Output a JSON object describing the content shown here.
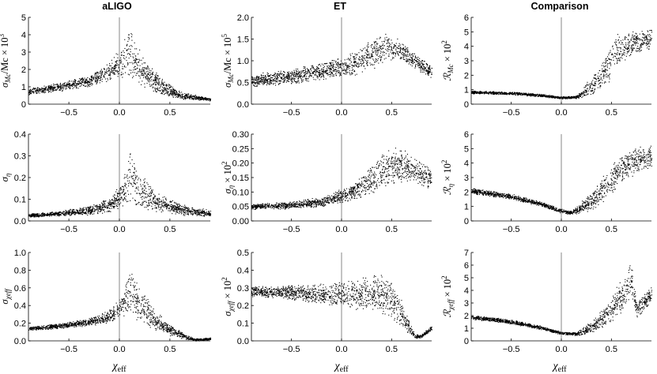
{
  "columns": [
    "aLIGO",
    "ET",
    "Comparison"
  ],
  "xlabel": {
    "main": "χ",
    "sub": "eff"
  },
  "chart_data": [
    {
      "type": "scatter",
      "column": "aLIGO",
      "ylabel": {
        "main": "σ",
        "sub": "Mc",
        "suffix": "/Mc × 10",
        "sup": "3"
      },
      "xlim": [
        -0.9,
        0.9
      ],
      "ylim": [
        0,
        5
      ],
      "yticks": [
        "0",
        "1",
        "2",
        "3",
        "4",
        "5"
      ],
      "xticks": [
        "-0.5",
        "0.0",
        "0.5"
      ],
      "envelope": {
        "x": [
          -0.9,
          -0.6,
          -0.3,
          -0.1,
          0.0,
          0.05,
          0.1,
          0.15,
          0.25,
          0.4,
          0.6,
          0.9
        ],
        "upper": [
          0.95,
          1.25,
          1.7,
          2.5,
          3.2,
          3.9,
          4.6,
          3.7,
          2.7,
          1.6,
          0.75,
          0.35
        ],
        "lower": [
          0.55,
          0.75,
          1.0,
          1.3,
          1.5,
          1.5,
          1.4,
          1.2,
          0.9,
          0.55,
          0.3,
          0.2
        ]
      }
    },
    {
      "type": "scatter",
      "column": "ET",
      "ylabel": {
        "main": "σ",
        "sub": "Mc",
        "suffix": "/Mc × 10",
        "sup": "5"
      },
      "xlim": [
        -0.9,
        0.9
      ],
      "ylim": [
        0,
        2.0
      ],
      "yticks": [
        "0.0",
        "0.5",
        "1.0",
        "1.5",
        "2.0"
      ],
      "xticks": [
        "-0.5",
        "0.0",
        "0.5"
      ],
      "envelope": {
        "x": [
          -0.9,
          -0.5,
          -0.2,
          0.1,
          0.3,
          0.45,
          0.6,
          0.75,
          0.9
        ],
        "upper": [
          0.7,
          0.82,
          0.98,
          1.2,
          1.5,
          1.7,
          1.45,
          1.15,
          0.9
        ],
        "lower": [
          0.38,
          0.45,
          0.55,
          0.65,
          0.8,
          0.95,
          1.0,
          0.8,
          0.55
        ]
      }
    },
    {
      "type": "scatter",
      "column": "Comparison",
      "ylabel": {
        "main": "ℛ",
        "sub": "Mc",
        "suffix": " × 10",
        "sup": "2"
      },
      "xlim": [
        -0.9,
        0.9
      ],
      "ylim": [
        0,
        6
      ],
      "yticks": [
        "0",
        "1",
        "2",
        "3",
        "4",
        "5",
        "6"
      ],
      "xticks": [
        "-0.5",
        "0.0",
        "0.5"
      ],
      "envelope": {
        "x": [
          -0.9,
          -0.5,
          -0.2,
          0.0,
          0.15,
          0.25,
          0.4,
          0.5,
          0.55,
          0.65,
          0.75,
          0.9
        ],
        "upper": [
          0.95,
          0.88,
          0.72,
          0.55,
          0.6,
          1.5,
          3.0,
          4.6,
          5.1,
          5.15,
          5.2,
          5.25
        ],
        "lower": [
          0.72,
          0.66,
          0.52,
          0.38,
          0.4,
          0.45,
          0.9,
          1.6,
          2.2,
          3.0,
          3.5,
          3.8
        ]
      }
    },
    {
      "type": "scatter",
      "column": "aLIGO",
      "ylabel": {
        "main": "σ",
        "sub": "η",
        "suffix": "",
        "sup": ""
      },
      "xlim": [
        -0.9,
        0.9
      ],
      "ylim": [
        0,
        0.4
      ],
      "yticks": [
        "0.0",
        "0.1",
        "0.2",
        "0.3",
        "0.4"
      ],
      "xticks": [
        "-0.5",
        "0.0",
        "0.5"
      ],
      "envelope": {
        "x": [
          -0.9,
          -0.6,
          -0.3,
          -0.1,
          0.0,
          0.05,
          0.1,
          0.15,
          0.25,
          0.4,
          0.6,
          0.9
        ],
        "upper": [
          0.035,
          0.048,
          0.07,
          0.11,
          0.17,
          0.24,
          0.35,
          0.28,
          0.2,
          0.13,
          0.08,
          0.05
        ],
        "lower": [
          0.018,
          0.022,
          0.028,
          0.04,
          0.05,
          0.06,
          0.07,
          0.06,
          0.05,
          0.04,
          0.025,
          0.02
        ]
      }
    },
    {
      "type": "scatter",
      "column": "ET",
      "ylabel": {
        "main": "σ",
        "sub": "η",
        "suffix": " × 10",
        "sup": "2"
      },
      "xlim": [
        -0.9,
        0.9
      ],
      "ylim": [
        0,
        0.3
      ],
      "yticks": [
        "0.00",
        "0.05",
        "0.10",
        "0.15",
        "0.20",
        "0.25",
        "0.30"
      ],
      "xticks": [
        "-0.5",
        "0.0",
        "0.5"
      ],
      "envelope": {
        "x": [
          -0.9,
          -0.5,
          -0.2,
          0.1,
          0.3,
          0.5,
          0.6,
          0.75,
          0.9
        ],
        "upper": [
          0.06,
          0.068,
          0.085,
          0.13,
          0.2,
          0.27,
          0.25,
          0.22,
          0.19
        ],
        "lower": [
          0.04,
          0.042,
          0.05,
          0.07,
          0.09,
          0.12,
          0.13,
          0.12,
          0.1
        ]
      }
    },
    {
      "type": "scatter",
      "column": "Comparison",
      "ylabel": {
        "main": "ℛ",
        "sub": "η",
        "suffix": " × 10",
        "sup": "2"
      },
      "xlim": [
        -0.9,
        0.9
      ],
      "ylim": [
        0,
        6
      ],
      "yticks": [
        "0",
        "1",
        "2",
        "3",
        "4",
        "5",
        "6"
      ],
      "xticks": [
        "-0.5",
        "0.0",
        "0.5"
      ],
      "envelope": {
        "x": [
          -0.9,
          -0.5,
          -0.2,
          0.0,
          0.1,
          0.2,
          0.35,
          0.5,
          0.6,
          0.75,
          0.9
        ],
        "upper": [
          2.3,
          1.9,
          1.35,
          0.85,
          0.7,
          1.4,
          2.6,
          3.9,
          4.6,
          5.2,
          5.5
        ],
        "lower": [
          1.9,
          1.5,
          1.0,
          0.55,
          0.45,
          0.5,
          0.9,
          1.8,
          2.6,
          3.3,
          3.7
        ]
      }
    },
    {
      "type": "scatter",
      "column": "aLIGO",
      "ylabel": {
        "main": "σ",
        "sub": "χeff",
        "suffix": "",
        "sup": ""
      },
      "xlim": [
        -0.9,
        0.9
      ],
      "ylim": [
        0,
        1.0
      ],
      "yticks": [
        "0.0",
        "0.2",
        "0.4",
        "0.6",
        "0.8",
        "1.0"
      ],
      "xticks": [
        "-0.5",
        "0.0",
        "0.5"
      ],
      "envelope": {
        "x": [
          -0.9,
          -0.6,
          -0.3,
          -0.1,
          0.0,
          0.05,
          0.1,
          0.2,
          0.35,
          0.5,
          0.65,
          0.75,
          0.9
        ],
        "upper": [
          0.16,
          0.2,
          0.26,
          0.36,
          0.5,
          0.65,
          0.88,
          0.65,
          0.35,
          0.2,
          0.08,
          0.03,
          0.04
        ],
        "lower": [
          0.12,
          0.14,
          0.17,
          0.2,
          0.25,
          0.28,
          0.3,
          0.2,
          0.12,
          0.06,
          0.02,
          0.0,
          0.01
        ]
      }
    },
    {
      "type": "scatter",
      "column": "ET",
      "ylabel": {
        "main": "σ",
        "sub": "χeff",
        "suffix": " × 10",
        "sup": "2"
      },
      "xlim": [
        -0.9,
        0.9
      ],
      "ylim": [
        0,
        0.5
      ],
      "yticks": [
        "0.0",
        "0.1",
        "0.2",
        "0.3",
        "0.4",
        "0.5"
      ],
      "xticks": [
        "-0.5",
        "0.0",
        "0.5"
      ],
      "envelope": {
        "x": [
          -0.9,
          -0.5,
          -0.2,
          0.1,
          0.3,
          0.45,
          0.55,
          0.65,
          0.73,
          0.8,
          0.9
        ],
        "upper": [
          0.31,
          0.32,
          0.33,
          0.35,
          0.38,
          0.38,
          0.3,
          0.15,
          0.04,
          0.04,
          0.09
        ],
        "lower": [
          0.25,
          0.23,
          0.2,
          0.18,
          0.16,
          0.14,
          0.1,
          0.05,
          0.01,
          0.02,
          0.06
        ]
      }
    },
    {
      "type": "scatter",
      "column": "Comparison",
      "ylabel": {
        "main": "ℛ",
        "sub": "χeff",
        "suffix": " × 10",
        "sup": "2"
      },
      "xlim": [
        -0.9,
        0.9
      ],
      "ylim": [
        0,
        7
      ],
      "yticks": [
        "0",
        "1",
        "2",
        "3",
        "4",
        "5",
        "6",
        "7"
      ],
      "xticks": [
        "-0.5",
        "0.0",
        "0.5"
      ],
      "envelope": {
        "x": [
          -0.9,
          -0.5,
          -0.2,
          0.0,
          0.15,
          0.3,
          0.45,
          0.6,
          0.7,
          0.75,
          0.8,
          0.9
        ],
        "upper": [
          2.1,
          1.7,
          1.2,
          0.75,
          0.7,
          1.6,
          3.0,
          5.0,
          6.6,
          3.2,
          3.6,
          4.4
        ],
        "lower": [
          1.7,
          1.35,
          0.9,
          0.5,
          0.45,
          0.6,
          1.1,
          2.2,
          3.5,
          1.7,
          2.2,
          3.0
        ]
      }
    }
  ]
}
